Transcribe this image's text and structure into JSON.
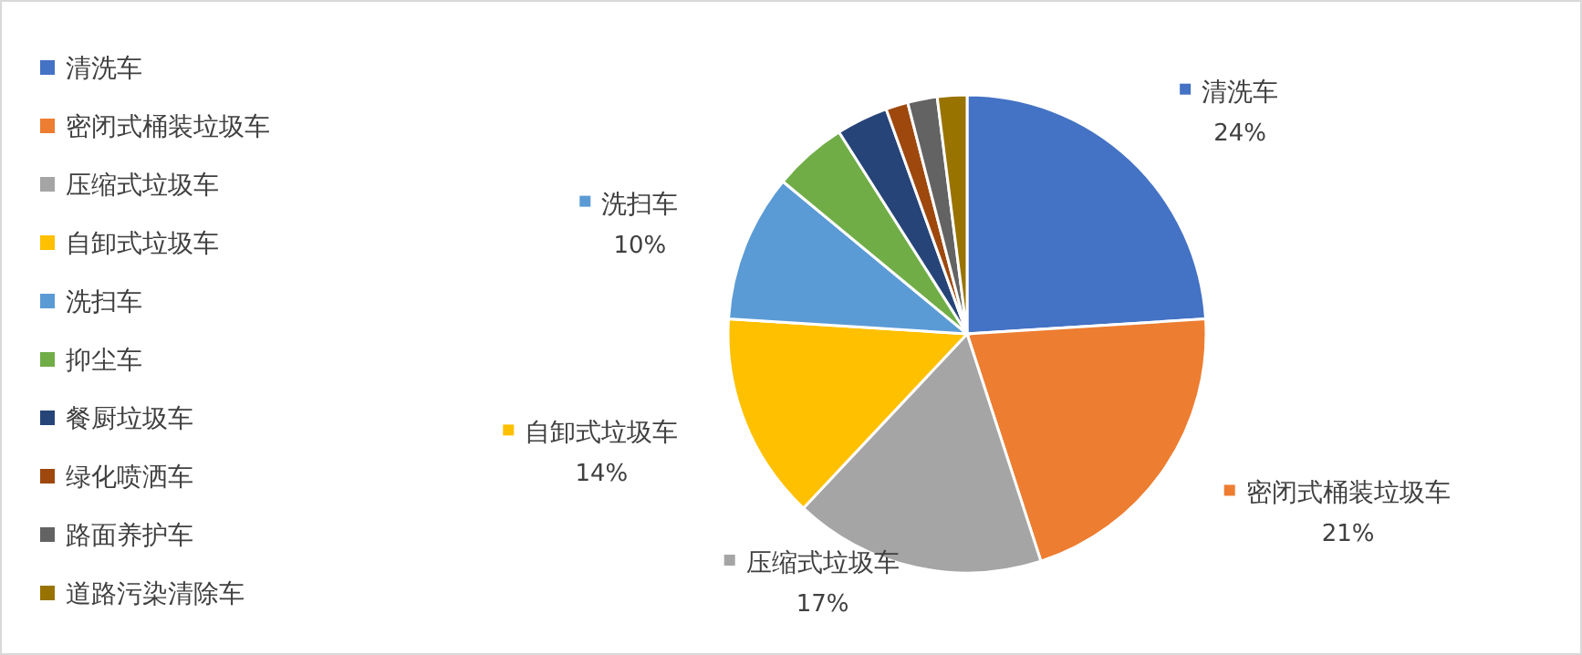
{
  "chart_data": {
    "type": "pie",
    "legend": "left",
    "categories": [
      "清洗车",
      "密闭式桶装垃圾车",
      "压缩式垃圾车",
      "自卸式垃圾车",
      "洗扫车",
      "抑尘车",
      "餐厨垃圾车",
      "绿化喷洒车",
      "路面养护车",
      "道路污染清除车"
    ],
    "values": [
      24,
      21,
      17,
      14,
      10,
      5,
      3.5,
      1.5,
      2,
      2
    ],
    "value_labels": [
      "24%",
      "21%",
      "17%",
      "14%",
      "10%",
      null,
      null,
      null,
      null,
      null
    ],
    "colors": [
      "#4472c4",
      "#ed7d31",
      "#a5a5a5",
      "#ffc000",
      "#5b9bd5",
      "#70ad47",
      "#264478",
      "#9e480e",
      "#636363",
      "#997300"
    ]
  }
}
